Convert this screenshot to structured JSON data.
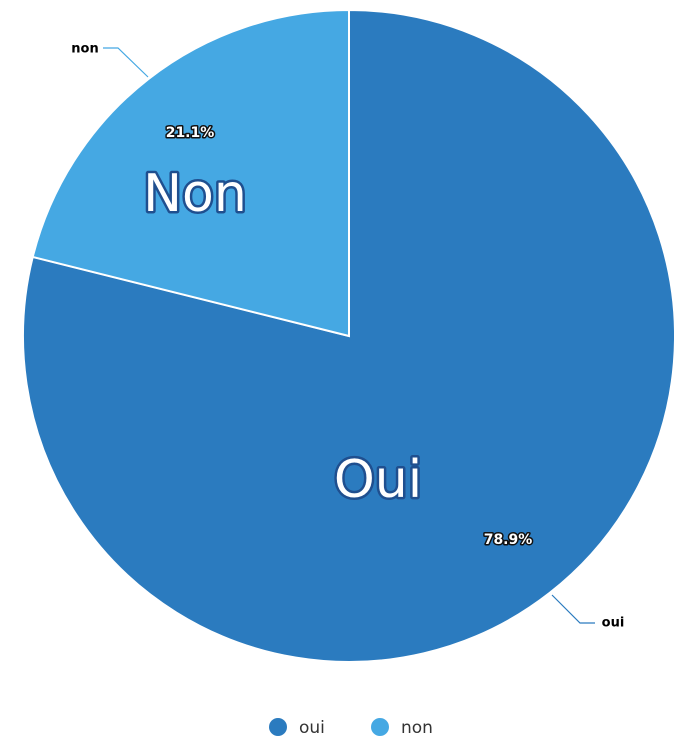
{
  "chart_data": {
    "type": "pie",
    "categories": [
      "oui",
      "non"
    ],
    "values": [
      78.9,
      21.1
    ],
    "value_labels": [
      "78.9%",
      "21.1%"
    ],
    "colors": [
      "#2b7bbf",
      "#45a8e3"
    ],
    "annotations": [
      "Oui",
      "Non"
    ],
    "legend": "bottom"
  }
}
